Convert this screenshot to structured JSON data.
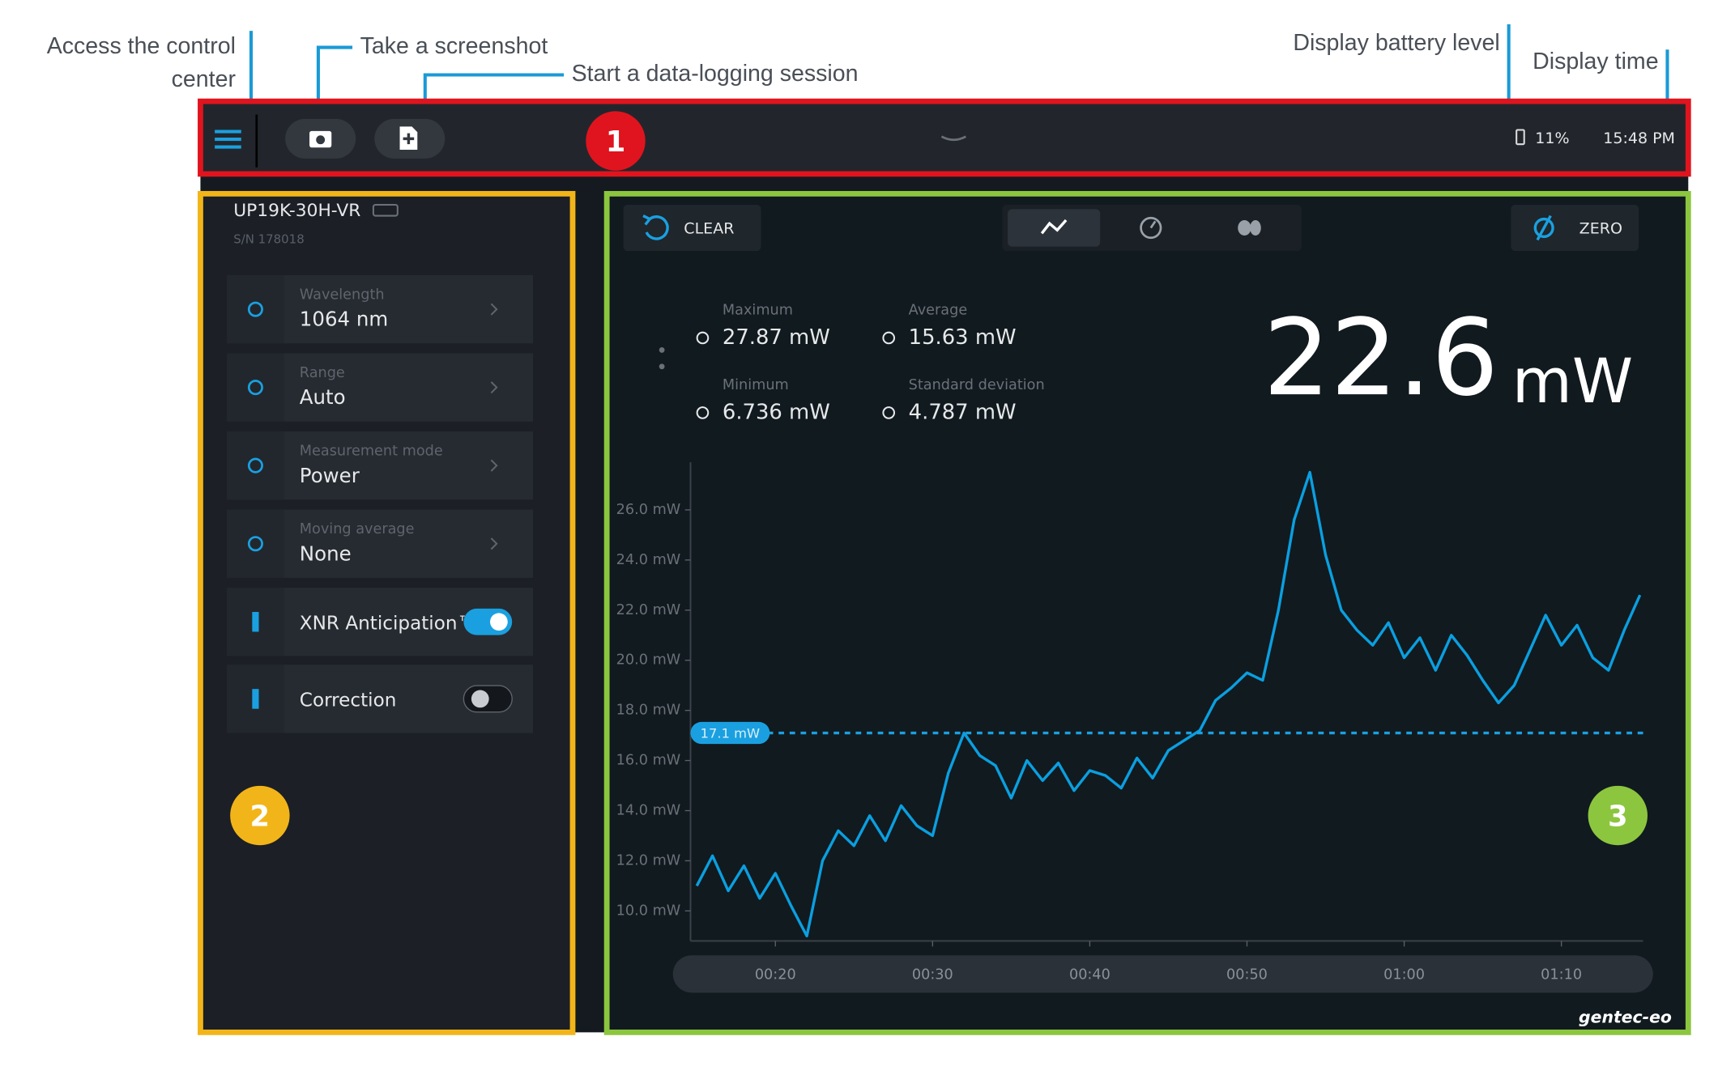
{
  "annotations": {
    "control_center": [
      "Access the control",
      "center"
    ],
    "screenshot": "Take a screenshot",
    "logging": "Start a data-logging session",
    "battery": "Display battery level",
    "time": "Display time"
  },
  "topbar": {
    "battery": "11%",
    "time": "15:48 PM"
  },
  "badges": [
    "1",
    "2",
    "3"
  ],
  "device": {
    "model": "UP19K-30H-VR",
    "serial": "S/N 178018"
  },
  "settings": [
    {
      "label": "Wavelength",
      "value": "1064 nm"
    },
    {
      "label": "Range",
      "value": "Auto"
    },
    {
      "label": "Measurement mode",
      "value": "Power"
    },
    {
      "label": "Moving average",
      "value": "None"
    }
  ],
  "toggles": [
    {
      "label": "XNR Anticipation™",
      "on": true
    },
    {
      "label": "Correction",
      "on": false
    }
  ],
  "buttons": {
    "clear": "CLEAR",
    "zero": "ZERO"
  },
  "stats": [
    {
      "label": "Maximum",
      "value": "27.87 mW"
    },
    {
      "label": "Average",
      "value": "15.63 mW"
    },
    {
      "label": "Minimum",
      "value": "6.736 mW"
    },
    {
      "label": "Standard deviation",
      "value": "4.787 mW"
    }
  ],
  "reading": {
    "value": "22.6",
    "unit": "mW"
  },
  "brand": "gentec-eo",
  "chart_data": {
    "type": "line",
    "x": [
      15,
      16,
      17,
      18,
      19,
      20,
      21,
      22,
      23,
      24,
      25,
      26,
      27,
      28,
      29,
      30,
      31,
      32,
      33,
      34,
      35,
      36,
      37,
      38,
      39,
      40,
      41,
      42,
      43,
      44,
      45,
      46,
      47,
      48,
      49,
      50,
      51,
      52,
      53,
      54,
      55,
      56,
      57,
      58,
      59,
      60,
      61,
      62,
      63,
      64,
      65,
      66,
      67,
      68,
      69,
      70,
      71,
      72,
      73,
      74,
      75
    ],
    "series": [
      {
        "color": "#0a9fe0",
        "values": [
          11.0,
          12.2,
          10.8,
          11.8,
          10.5,
          11.5,
          10.2,
          9.0,
          12.0,
          13.2,
          12.6,
          13.8,
          12.8,
          14.2,
          13.4,
          13.0,
          15.5,
          17.1,
          16.2,
          15.8,
          14.5,
          16.0,
          15.2,
          15.9,
          14.8,
          15.6,
          15.4,
          14.9,
          16.1,
          15.3,
          16.4,
          16.8,
          17.2,
          18.4,
          18.9,
          19.5,
          19.2,
          22.0,
          25.6,
          27.5,
          24.2,
          22.0,
          21.2,
          20.6,
          21.5,
          20.1,
          20.9,
          19.6,
          21.0,
          20.2,
          19.2,
          18.3,
          19.0,
          20.4,
          21.8,
          20.6,
          21.4,
          20.1,
          19.6,
          21.2,
          22.6
        ]
      }
    ],
    "xlim": [
      14.6,
      75.2
    ],
    "ylim": [
      8.8,
      27.9
    ],
    "xticks": [
      {
        "value": 20,
        "label": "00:20"
      },
      {
        "value": 30,
        "label": "00:30"
      },
      {
        "value": 40,
        "label": "00:40"
      },
      {
        "value": 50,
        "label": "00:50"
      },
      {
        "value": 60,
        "label": "01:00"
      },
      {
        "value": 70,
        "label": "01:10"
      }
    ],
    "yticks": [
      {
        "value": 10,
        "label": "10.0 mW"
      },
      {
        "value": 12,
        "label": "12.0 mW"
      },
      {
        "value": 14,
        "label": "14.0 mW"
      },
      {
        "value": 16,
        "label": "16.0 mW"
      },
      {
        "value": 18,
        "label": "18.0 mW"
      },
      {
        "value": 20,
        "label": "20.0 mW"
      },
      {
        "value": 22,
        "label": "22.0 mW"
      },
      {
        "value": 24,
        "label": "24.0 mW"
      },
      {
        "value": 26,
        "label": "26.0 mW"
      }
    ],
    "threshold": {
      "value": 17.1,
      "label": "17.1 mW"
    }
  }
}
